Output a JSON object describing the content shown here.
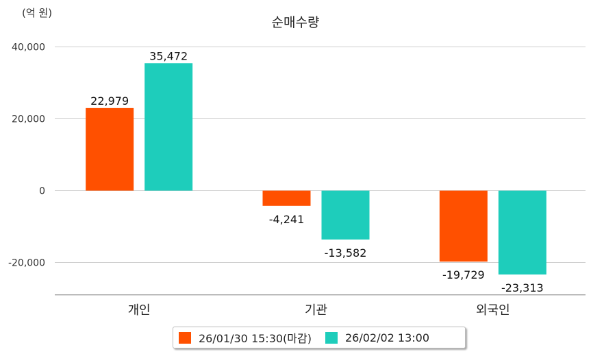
{
  "chart_data": {
    "type": "bar",
    "title": "순매수량",
    "unit_label": "(억 원)",
    "categories": [
      "개인",
      "기관",
      "외국인"
    ],
    "series": [
      {
        "name": "26/01/30 15:30(마감)",
        "color": "#ff5000",
        "values": [
          22979,
          -4241,
          -19729
        ],
        "labels": [
          "22,979",
          "-4,241",
          "-19,729"
        ]
      },
      {
        "name": "26/02/02 13:00",
        "color": "#1ecdbb",
        "values": [
          35472,
          -13582,
          -23313
        ],
        "labels": [
          "35,472",
          "-13,582",
          "-23,313"
        ]
      }
    ],
    "yticks": [
      40000,
      20000,
      0,
      -20000
    ],
    "ytick_labels": [
      "40,000",
      "20,000",
      "0",
      "-20,000"
    ],
    "ylim": [
      -29000,
      40000
    ],
    "grid": true,
    "legend_position": "bottom"
  }
}
